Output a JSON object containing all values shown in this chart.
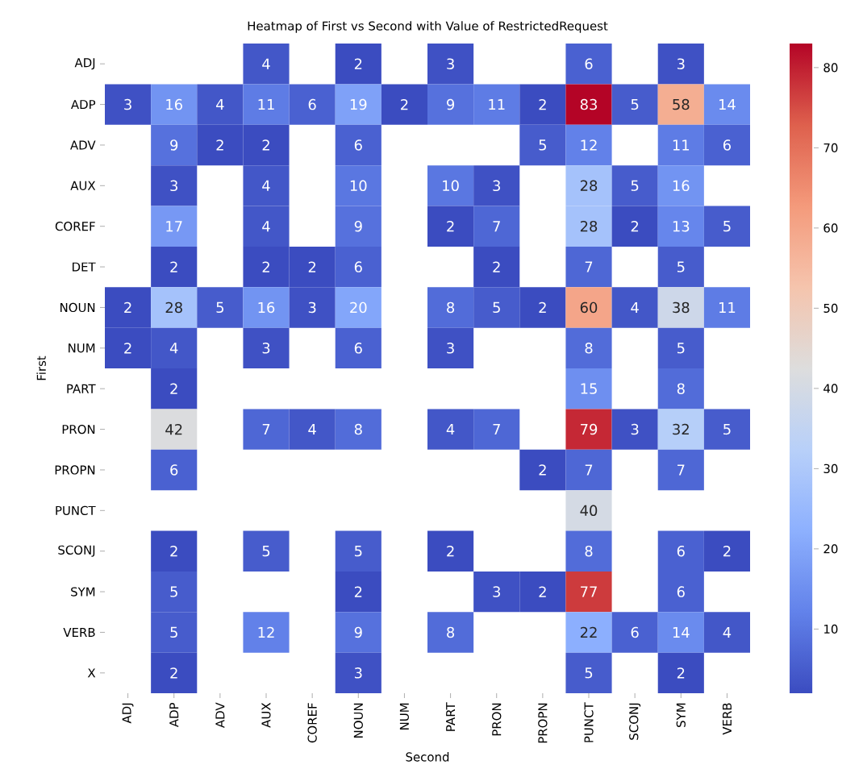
{
  "chart_data": {
    "type": "heatmap",
    "title": "Heatmap of First vs Second with Value of RestrictedRequest",
    "xlabel": "Second",
    "ylabel": "First",
    "categories": [
      "ADJ",
      "ADP",
      "ADV",
      "AUX",
      "COREF",
      "NOUN",
      "NUM",
      "PART",
      "PRON",
      "PROPN",
      "PUNCT",
      "SCONJ",
      "SYM",
      "VERB"
    ],
    "y_categories": [
      "ADJ",
      "ADP",
      "ADV",
      "AUX",
      "COREF",
      "DET",
      "NOUN",
      "NUM",
      "PART",
      "PRON",
      "PROPN",
      "PUNCT",
      "SCONJ",
      "SYM",
      "VERB",
      "X"
    ],
    "cells": [
      [
        null,
        null,
        null,
        4,
        null,
        2,
        null,
        3,
        null,
        null,
        6,
        null,
        3,
        null
      ],
      [
        3,
        16,
        4,
        11,
        6,
        19,
        2,
        9,
        11,
        2,
        83,
        5,
        58,
        14
      ],
      [
        null,
        9,
        2,
        2,
        null,
        6,
        null,
        null,
        null,
        5,
        12,
        null,
        11,
        6
      ],
      [
        null,
        3,
        null,
        4,
        null,
        10,
        null,
        10,
        3,
        null,
        28,
        5,
        16,
        null
      ],
      [
        null,
        17,
        null,
        4,
        null,
        9,
        null,
        2,
        7,
        null,
        28,
        2,
        13,
        5
      ],
      [
        null,
        2,
        null,
        2,
        2,
        6,
        null,
        null,
        2,
        null,
        7,
        null,
        5,
        null
      ],
      [
        2,
        28,
        5,
        16,
        3,
        20,
        null,
        8,
        5,
        2,
        60,
        4,
        38,
        11
      ],
      [
        2,
        4,
        null,
        3,
        null,
        6,
        null,
        3,
        null,
        null,
        8,
        null,
        5,
        null
      ],
      [
        null,
        2,
        null,
        null,
        null,
        null,
        null,
        null,
        null,
        null,
        15,
        null,
        8,
        null
      ],
      [
        null,
        42,
        null,
        7,
        4,
        8,
        null,
        4,
        7,
        null,
        79,
        3,
        32,
        5
      ],
      [
        null,
        6,
        null,
        null,
        null,
        null,
        null,
        null,
        null,
        2,
        7,
        null,
        7,
        null
      ],
      [
        null,
        null,
        null,
        null,
        null,
        null,
        null,
        null,
        null,
        null,
        40,
        null,
        null,
        null
      ],
      [
        null,
        2,
        null,
        5,
        null,
        5,
        null,
        2,
        null,
        null,
        8,
        null,
        6,
        2
      ],
      [
        null,
        5,
        null,
        null,
        null,
        2,
        null,
        null,
        3,
        2,
        77,
        null,
        6,
        null
      ],
      [
        null,
        5,
        null,
        12,
        null,
        9,
        null,
        8,
        null,
        null,
        22,
        6,
        14,
        4
      ],
      [
        null,
        2,
        null,
        null,
        null,
        3,
        null,
        null,
        null,
        null,
        5,
        null,
        2,
        null
      ]
    ],
    "data_labels": true,
    "clim": [
      2,
      83
    ],
    "cticks": [
      10,
      20,
      30,
      40,
      50,
      60,
      70,
      80
    ]
  }
}
